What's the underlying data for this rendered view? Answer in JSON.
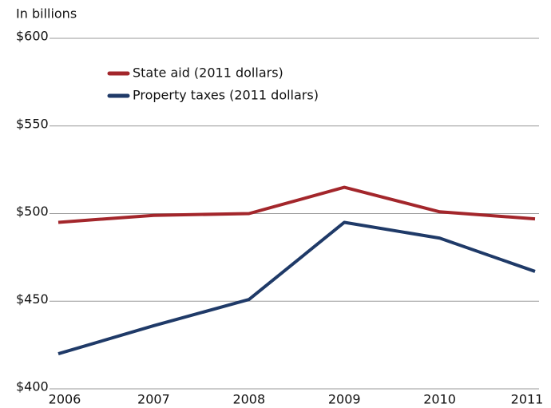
{
  "chart_data": {
    "type": "line",
    "subtitle": "In billions",
    "categories": [
      "2006",
      "2007",
      "2008",
      "2009",
      "2010",
      "2011"
    ],
    "series": [
      {
        "name": "State aid (2011 dollars)",
        "color": "#a3262b",
        "values": [
          495,
          499,
          500,
          515,
          501,
          497
        ]
      },
      {
        "name": "Property taxes (2011 dollars)",
        "color": "#1f3a68",
        "values": [
          420,
          436,
          451,
          495,
          486,
          467
        ]
      }
    ],
    "ylim": [
      400,
      600
    ],
    "yticks": [
      {
        "value": 400,
        "label": "$400"
      },
      {
        "value": 450,
        "label": "$450"
      },
      {
        "value": 500,
        "label": "$500"
      },
      {
        "value": 550,
        "label": "$550"
      },
      {
        "value": 600,
        "label": "$600"
      }
    ],
    "grid": true
  }
}
